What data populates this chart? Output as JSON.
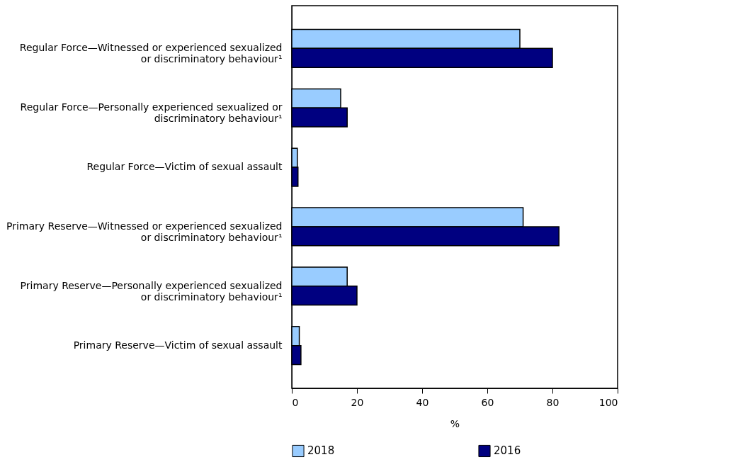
{
  "chart_data": {
    "type": "bar",
    "orientation": "horizontal",
    "xlabel": "%",
    "categories": [
      "Regular Force—Witnessed or experienced sexualized or discriminatory behaviour¹",
      "Regular Force—Personally experienced sexualized or discriminatory behaviour¹",
      "Regular Force—Victim of sexual assault",
      "Primary Reserve—Witnessed or experienced sexualized or discriminatory behaviour¹",
      "Primary Reserve—Personally experienced sexualized or discriminatory behaviour¹",
      "Primary Reserve—Victim of sexual assault"
    ],
    "series": [
      {
        "name": "2018",
        "color": "#99ccff",
        "values": [
          70,
          15,
          1.7,
          71,
          17,
          2.3
        ]
      },
      {
        "name": "2016",
        "color": "#000080",
        "values": [
          80,
          17,
          1.9,
          82,
          20,
          2.8
        ]
      }
    ],
    "xlim": [
      0,
      100
    ],
    "xticks": [
      0,
      20,
      40,
      60,
      80,
      100
    ],
    "grid": false,
    "legend": "bottom"
  }
}
